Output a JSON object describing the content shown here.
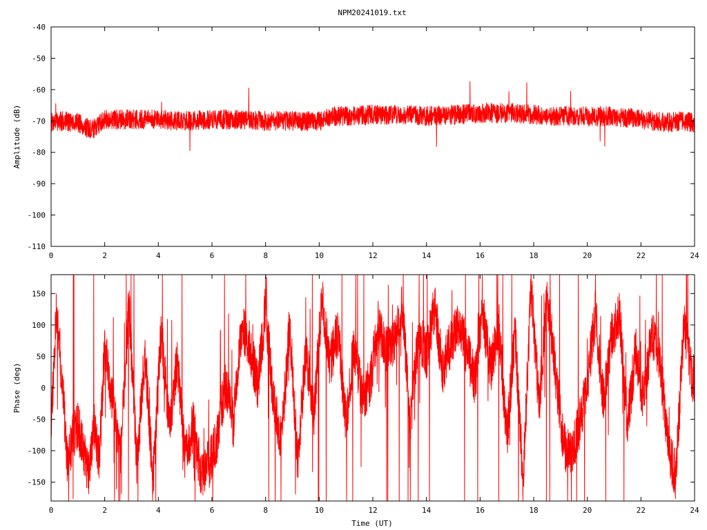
{
  "chart_data": [
    {
      "type": "line",
      "title": "NPM20241019.txt",
      "xlabel": "",
      "ylabel": "Amplitude (dB)",
      "xlim": [
        0,
        24
      ],
      "ylim": [
        -110,
        -40
      ],
      "xticks": [
        "0",
        "2",
        "4",
        "6",
        "8",
        "10",
        "12",
        "14",
        "16",
        "18",
        "20",
        "22",
        "24"
      ],
      "yticks": [
        "-40",
        "-50",
        "-60",
        "-70",
        "-80",
        "-90",
        "-100",
        "-110"
      ],
      "grid": false,
      "line_color": "#ff0000",
      "series": [
        {
          "x": [
            0,
            0.5,
            1.0,
            1.5,
            2,
            3,
            4,
            5,
            6,
            7,
            8,
            9,
            10,
            10.5,
            11,
            12,
            13,
            14,
            15,
            16,
            17,
            18,
            19,
            20,
            21,
            22,
            23,
            23.5,
            24
          ],
          "values": [
            -70.5,
            -70,
            -70.5,
            -73,
            -69.5,
            -69.5,
            -69.5,
            -70,
            -69.5,
            -69.5,
            -70,
            -70,
            -70,
            -68.5,
            -68.5,
            -68,
            -68,
            -68.5,
            -68,
            -67.5,
            -67.5,
            -68,
            -68.5,
            -68.5,
            -68.5,
            -69.5,
            -70.5,
            -70,
            -70.5
          ]
        }
      ]
    },
    {
      "type": "line",
      "title": "",
      "xlabel": "Time (UT)",
      "ylabel": "Phase (deg)",
      "xlim": [
        0,
        24
      ],
      "ylim": [
        -180,
        180
      ],
      "xticks": [
        "0",
        "2",
        "4",
        "6",
        "8",
        "10",
        "12",
        "14",
        "16",
        "18",
        "20",
        "22",
        "24"
      ],
      "yticks": [
        "150",
        "100",
        "50",
        "0",
        "-50",
        "-100",
        "-150"
      ],
      "grid": false,
      "line_color": "#ff0000",
      "series": [
        {
          "x": [
            0,
            0.2,
            0.4,
            0.6,
            0.8,
            1.0,
            1.2,
            1.4,
            1.6,
            1.8,
            2.0,
            2.3,
            2.6,
            2.9,
            3.2,
            3.5,
            3.8,
            4.1,
            4.4,
            4.7,
            5.0,
            5.3,
            5.6,
            5.9,
            6.2,
            6.5,
            6.8,
            7.1,
            7.4,
            7.7,
            8.0,
            8.3,
            8.6,
            8.9,
            9.2,
            9.5,
            9.8,
            10.1,
            10.4,
            10.7,
            11.0,
            11.3,
            11.6,
            11.9,
            12.2,
            12.5,
            12.8,
            13.1,
            13.4,
            13.7,
            14.0,
            14.3,
            14.6,
            14.9,
            15.2,
            15.5,
            15.8,
            16.1,
            16.4,
            16.7,
            17.0,
            17.3,
            17.6,
            17.9,
            18.2,
            18.5,
            18.8,
            19.1,
            19.4,
            19.7,
            20.0,
            20.3,
            20.6,
            20.9,
            21.2,
            21.5,
            21.8,
            22.1,
            22.4,
            22.7,
            23.0,
            23.3,
            23.6,
            23.9,
            24.0
          ],
          "values": [
            -50,
            120,
            20,
            -120,
            -80,
            -60,
            -100,
            -140,
            -60,
            -110,
            60,
            -20,
            -100,
            140,
            -120,
            60,
            -150,
            90,
            -60,
            40,
            -110,
            -60,
            -140,
            -120,
            -80,
            10,
            -60,
            100,
            70,
            0,
            130,
            -30,
            -80,
            100,
            -120,
            60,
            -40,
            140,
            40,
            90,
            -60,
            70,
            -20,
            10,
            100,
            60,
            70,
            130,
            -60,
            90,
            50,
            130,
            30,
            70,
            100,
            60,
            10,
            120,
            30,
            100,
            -80,
            90,
            -150,
            160,
            -30,
            150,
            30,
            -90,
            -110,
            -60,
            10,
            120,
            -20,
            80,
            120,
            -60,
            60,
            -20,
            90,
            50,
            -90,
            -140,
            100,
            20,
            10
          ]
        }
      ]
    }
  ]
}
